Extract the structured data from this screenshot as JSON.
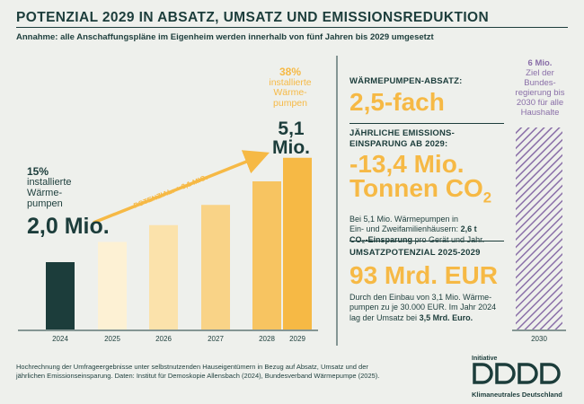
{
  "header": {
    "title": "POTENZIAL 2029 IN ABSATZ, UMSATZ UND EMISSIONSREDUKTION",
    "subtitle": "Annahme: alle Anschaffungspläne im Eigenheim werden innerhalb von fünf Jahren bis 2029 umgesetzt"
  },
  "chart_data": {
    "type": "bar",
    "title": "Potenzial 2029 in Absatz, Umsatz und Emissionsreduktion",
    "categories": [
      "2024",
      "2025",
      "2026",
      "2027",
      "2028",
      "2029",
      "2030"
    ],
    "values": [
      2.0,
      2.6,
      3.1,
      3.7,
      4.4,
      5.1,
      6.0
    ],
    "unit": "Mio. Wärmepumpen",
    "ylim": [
      0,
      6.5
    ],
    "colors": [
      "#1c3d3b",
      "#fdf1d4",
      "#fbe2ab",
      "#f9d387",
      "#f7c461",
      "#f6b945",
      "#8a6fa8"
    ],
    "annotations": {
      "start_pct": "15%",
      "start_label": "installierte Wärme-pumpen",
      "start_value": "2,0 Mio.",
      "end_pct": "38%",
      "end_label": "installierte Wärme-pumpen",
      "end_value": "5,1 Mio.",
      "arrow_label": "POTENZIAL: + 3,1 MIO.",
      "goal_value": "6 Mio.",
      "goal_label": "Ziel der Bundes-regierung bis 2030 für alle Haushalte"
    }
  },
  "colors": {
    "dark": "#1c3d3b",
    "accent": "#f6b945",
    "purple": "#8a6fa8",
    "background": "#eef0ec"
  },
  "panel": {
    "absatz": {
      "heading": "WÄRMEPUMPEN-ABSATZ:",
      "value": "2,5-fach"
    },
    "emission": {
      "heading_line1": "JÄHRLICHE EMISSIONS-",
      "heading_line2": "EINSPARUNG AB 2029:",
      "value_line1": "-13,4 Mio.",
      "value_line2": "Tonnen CO",
      "value_sub": "2",
      "body_line1": "Bei 5,1 Mio. Wärmepumpen in",
      "body_line2": "Ein- und Zweifamilienhäusern:",
      "body_bold": "2,6 t",
      "body_bold2": "CO₂-Einsparung",
      "body_end": "pro Gerät und Jahr."
    },
    "umsatz": {
      "heading": "UMSATZPOTENZIAL 2025-2029",
      "value": "93 Mrd. EUR",
      "body_line1": "Durch den Einbau von 3,1 Mio. Wärme-",
      "body_line2": "pumpen zu je 30.000 EUR. Im Jahr 2024",
      "body_line3": "lag der Umsatz bei",
      "body_bold": "3,5 Mrd. Euro."
    }
  },
  "footer": {
    "line1": "Hochrechnung der Umfrageergebnisse unter selbstnutzenden Hauseigentümern in Bezug auf Absatz, Umsatz und der",
    "line2": "jährlichen Emissionseinsparung. Daten: Institut für Demoskopie Allensbach (2024), Bundesverband Wärmepumpe (2025)."
  },
  "logo": {
    "top": "Initiative",
    "bottom": "Klimaneutrales Deutschland"
  }
}
